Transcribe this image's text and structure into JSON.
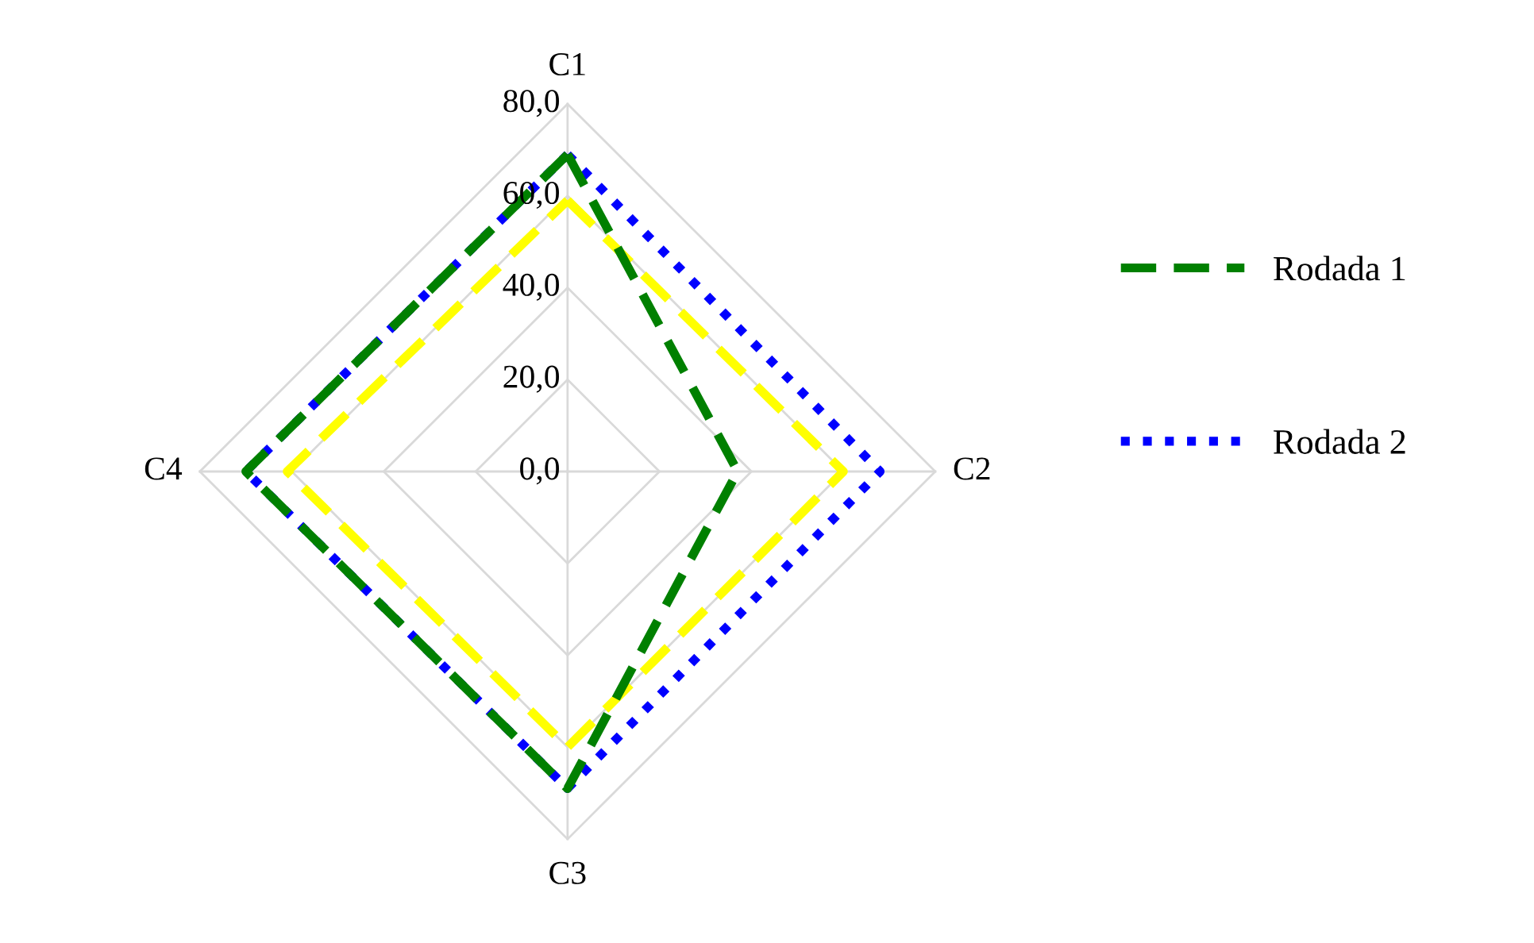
{
  "chart_data": {
    "type": "radar",
    "categories": [
      "C1",
      "C2",
      "C3",
      "C4"
    ],
    "series": [
      {
        "name": "Rodada 1",
        "color": "#008000",
        "line_style": "dashed",
        "values": [
          69,
          37,
          69,
          70
        ]
      },
      {
        "name": "Rodada 2",
        "color": "#0000ff",
        "line_style": "dotted",
        "values": [
          69,
          68,
          69,
          70
        ]
      },
      {
        "color": "#ffff00",
        "line_style": "dashed",
        "values": [
          59,
          60,
          60,
          61
        ]
      }
    ],
    "ylim": [
      0,
      80
    ],
    "yticks": [
      {
        "value": 0,
        "label": "0,0"
      },
      {
        "value": 20,
        "label": "20,0"
      },
      {
        "value": 40,
        "label": "40,0"
      },
      {
        "value": 60,
        "label": "60,0"
      },
      {
        "value": 80,
        "label": "80,0"
      }
    ],
    "grid": true,
    "legend": "right",
    "marker": "none"
  }
}
